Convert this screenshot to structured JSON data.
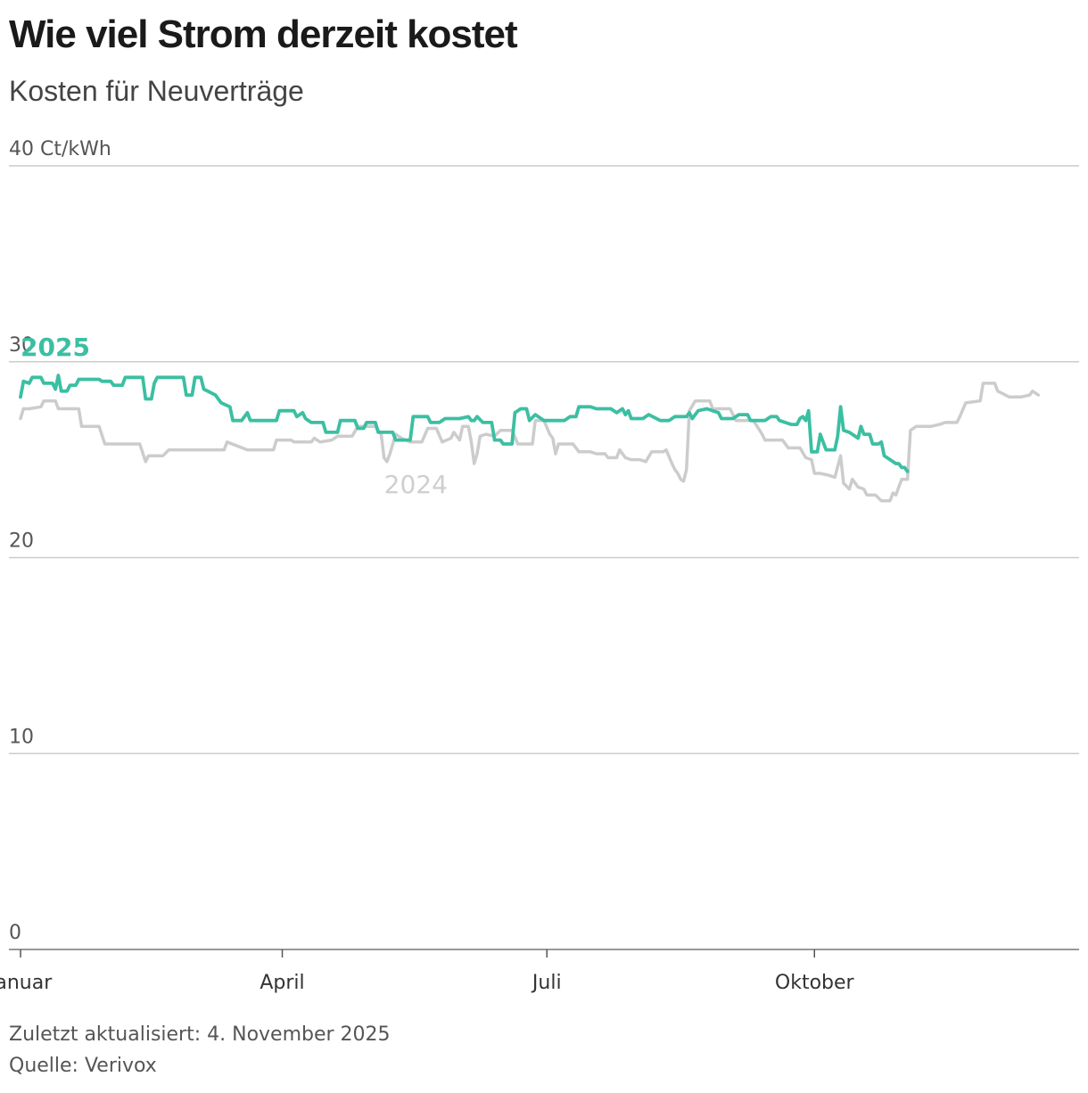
{
  "title": "Wie viel Strom derzeit kostet",
  "subtitle": "Kosten für Neuverträge",
  "footer": {
    "updated": "Zuletzt aktualisiert: 4. November 2025",
    "source": "Quelle: Verivox"
  },
  "colors": {
    "series_2025": "#3bbfa2",
    "series_2024": "#cccccc",
    "grid": "#cccccc"
  },
  "chart_data": {
    "type": "line",
    "title": "Wie viel Strom derzeit kostet",
    "subtitle": "Kosten für Neuverträge",
    "ylabel": "Ct/kWh",
    "ylim": [
      0,
      40
    ],
    "yticks": [
      {
        "value": 0,
        "label": "0"
      },
      {
        "value": 10,
        "label": "10"
      },
      {
        "value": 20,
        "label": "20"
      },
      {
        "value": 30,
        "label": "30"
      },
      {
        "value": 40,
        "label": "40 Ct/kWh"
      }
    ],
    "xlim_days": [
      -4,
      364
    ],
    "xticks": [
      {
        "day": 0,
        "label": "Januar"
      },
      {
        "day": 90,
        "label": "April"
      },
      {
        "day": 181,
        "label": "Juli"
      },
      {
        "day": 273,
        "label": "Oktober"
      }
    ],
    "grid": true,
    "series": [
      {
        "name": "2024",
        "label_position": [
          125,
          23.3
        ],
        "points": [
          [
            0,
            27.1
          ],
          [
            1,
            27.6
          ],
          [
            3,
            27.6
          ],
          [
            7,
            27.7
          ],
          [
            8,
            28.0
          ],
          [
            12,
            28.0
          ],
          [
            13,
            27.6
          ],
          [
            20,
            27.6
          ],
          [
            21,
            26.7
          ],
          [
            27,
            26.7
          ],
          [
            29,
            25.8
          ],
          [
            41,
            25.8
          ],
          [
            43,
            24.9
          ],
          [
            44,
            25.2
          ],
          [
            49,
            25.2
          ],
          [
            51,
            25.5
          ],
          [
            70,
            25.5
          ],
          [
            71,
            25.9
          ],
          [
            78,
            25.5
          ],
          [
            87,
            25.5
          ],
          [
            88,
            26.0
          ],
          [
            93,
            26.0
          ],
          [
            94,
            25.9
          ],
          [
            100,
            25.9
          ],
          [
            101,
            26.1
          ],
          [
            103,
            25.9
          ],
          [
            107,
            26.0
          ],
          [
            109,
            26.2
          ],
          [
            114,
            26.2
          ],
          [
            116,
            26.7
          ],
          [
            122,
            26.7
          ],
          [
            124,
            26.3
          ],
          [
            125,
            25.1
          ],
          [
            126,
            24.9
          ],
          [
            127,
            25.3
          ],
          [
            129,
            26.3
          ],
          [
            131,
            26.1
          ],
          [
            134,
            25.9
          ],
          [
            138,
            25.9
          ],
          [
            140,
            26.6
          ],
          [
            143,
            26.6
          ],
          [
            145,
            25.9
          ],
          [
            148,
            26.1
          ],
          [
            149,
            26.4
          ],
          [
            151,
            26.0
          ],
          [
            152,
            26.7
          ],
          [
            154,
            26.7
          ],
          [
            155,
            25.9
          ],
          [
            156,
            24.8
          ],
          [
            157,
            25.3
          ],
          [
            158,
            26.2
          ],
          [
            160,
            26.3
          ],
          [
            163,
            26.2
          ],
          [
            165,
            26.5
          ],
          [
            169,
            26.5
          ],
          [
            171,
            25.8
          ],
          [
            176,
            25.8
          ],
          [
            177,
            27.0
          ],
          [
            180,
            27.0
          ],
          [
            182,
            26.3
          ],
          [
            183,
            26.1
          ],
          [
            184,
            25.3
          ],
          [
            185,
            25.8
          ],
          [
            190,
            25.8
          ],
          [
            192,
            25.4
          ],
          [
            196,
            25.4
          ],
          [
            198,
            25.3
          ],
          [
            201,
            25.3
          ],
          [
            202,
            25.1
          ],
          [
            205,
            25.1
          ],
          [
            206,
            25.5
          ],
          [
            208,
            25.1
          ],
          [
            210,
            25.0
          ],
          [
            213,
            25.0
          ],
          [
            215,
            24.9
          ],
          [
            217,
            25.4
          ],
          [
            221,
            25.4
          ],
          [
            222,
            25.5
          ],
          [
            224,
            24.8
          ],
          [
            225,
            24.5
          ],
          [
            226,
            24.3
          ],
          [
            227,
            24.0
          ],
          [
            228,
            23.9
          ],
          [
            229,
            24.5
          ],
          [
            230,
            27.5
          ],
          [
            232,
            28.0
          ],
          [
            237,
            28.0
          ],
          [
            238,
            27.6
          ],
          [
            244,
            27.6
          ],
          [
            246,
            27.0
          ],
          [
            252,
            27.0
          ],
          [
            255,
            26.3
          ],
          [
            256,
            26.0
          ],
          [
            262,
            26.0
          ],
          [
            264,
            25.6
          ],
          [
            268,
            25.6
          ],
          [
            270,
            25.1
          ],
          [
            272,
            25.0
          ],
          [
            273,
            24.3
          ],
          [
            275,
            24.3
          ],
          [
            278,
            24.2
          ],
          [
            280,
            24.1
          ],
          [
            282,
            25.2
          ],
          [
            283,
            23.8
          ],
          [
            285,
            23.5
          ],
          [
            286,
            24.0
          ],
          [
            288,
            23.6
          ],
          [
            290,
            23.5
          ],
          [
            291,
            23.2
          ],
          [
            294,
            23.2
          ],
          [
            296,
            22.9
          ],
          [
            299,
            22.9
          ],
          [
            300,
            23.3
          ],
          [
            301,
            23.2
          ],
          [
            302,
            23.6
          ],
          [
            303,
            24.0
          ],
          [
            305,
            24.0
          ],
          [
            306,
            26.5
          ],
          [
            308,
            26.7
          ],
          [
            312,
            26.7
          ],
          [
            313,
            26.7
          ],
          [
            316,
            26.8
          ],
          [
            318,
            26.9
          ],
          [
            322,
            26.9
          ],
          [
            323,
            27.2
          ],
          [
            325,
            27.9
          ],
          [
            330,
            28.0
          ],
          [
            331,
            28.9
          ],
          [
            335,
            28.9
          ],
          [
            336,
            28.5
          ],
          [
            340,
            28.2
          ],
          [
            344,
            28.2
          ],
          [
            347,
            28.3
          ],
          [
            348,
            28.5
          ],
          [
            350,
            28.3
          ]
        ]
      },
      {
        "name": "2025",
        "label_position": [
          0,
          30.3
        ],
        "points": [
          [
            0,
            28.2
          ],
          [
            1,
            29.0
          ],
          [
            3,
            28.9
          ],
          [
            4,
            29.2
          ],
          [
            7,
            29.2
          ],
          [
            8,
            28.9
          ],
          [
            11,
            28.9
          ],
          [
            12,
            28.6
          ],
          [
            13,
            29.3
          ],
          [
            14,
            28.5
          ],
          [
            16,
            28.5
          ],
          [
            17,
            28.8
          ],
          [
            19,
            28.8
          ],
          [
            20,
            29.1
          ],
          [
            27,
            29.1
          ],
          [
            28,
            29.0
          ],
          [
            31,
            29.0
          ],
          [
            32,
            28.8
          ],
          [
            35,
            28.8
          ],
          [
            36,
            29.2
          ],
          [
            42,
            29.2
          ],
          [
            43,
            28.1
          ],
          [
            45,
            28.1
          ],
          [
            46,
            28.9
          ],
          [
            47,
            29.2
          ],
          [
            56,
            29.2
          ],
          [
            57,
            28.3
          ],
          [
            59,
            28.3
          ],
          [
            60,
            29.2
          ],
          [
            62,
            29.2
          ],
          [
            63,
            28.6
          ],
          [
            67,
            28.3
          ],
          [
            69,
            27.9
          ],
          [
            72,
            27.7
          ],
          [
            73,
            27.0
          ],
          [
            76,
            27.0
          ],
          [
            78,
            27.4
          ],
          [
            79,
            27.0
          ],
          [
            88,
            27.0
          ],
          [
            89,
            27.5
          ],
          [
            94,
            27.5
          ],
          [
            95,
            27.2
          ],
          [
            97,
            27.4
          ],
          [
            98,
            27.1
          ],
          [
            100,
            26.9
          ],
          [
            104,
            26.9
          ],
          [
            105,
            26.4
          ],
          [
            109,
            26.4
          ],
          [
            110,
            27.0
          ],
          [
            115,
            27.0
          ],
          [
            116,
            26.6
          ],
          [
            118,
            26.6
          ],
          [
            119,
            26.9
          ],
          [
            122,
            26.9
          ],
          [
            123,
            26.4
          ],
          [
            128,
            26.4
          ],
          [
            129,
            26.0
          ],
          [
            134,
            26.0
          ],
          [
            135,
            27.2
          ],
          [
            140,
            27.2
          ],
          [
            141,
            26.9
          ],
          [
            144,
            26.9
          ],
          [
            146,
            27.1
          ],
          [
            151,
            27.1
          ],
          [
            154,
            27.2
          ],
          [
            155,
            27.0
          ],
          [
            156,
            27.0
          ],
          [
            157,
            27.2
          ],
          [
            159,
            26.9
          ],
          [
            162,
            26.9
          ],
          [
            163,
            26.0
          ],
          [
            165,
            26.0
          ],
          [
            166,
            25.8
          ],
          [
            169,
            25.8
          ],
          [
            170,
            27.4
          ],
          [
            172,
            27.6
          ],
          [
            174,
            27.6
          ],
          [
            175,
            27.0
          ],
          [
            177,
            27.3
          ],
          [
            180,
            27.0
          ],
          [
            187,
            27.0
          ],
          [
            189,
            27.2
          ],
          [
            191,
            27.2
          ],
          [
            192,
            27.7
          ],
          [
            196,
            27.7
          ],
          [
            198,
            27.6
          ],
          [
            203,
            27.6
          ],
          [
            205,
            27.4
          ],
          [
            207,
            27.6
          ],
          [
            208,
            27.3
          ],
          [
            209,
            27.5
          ],
          [
            210,
            27.1
          ],
          [
            214,
            27.1
          ],
          [
            216,
            27.3
          ],
          [
            220,
            27.0
          ],
          [
            223,
            27.0
          ],
          [
            225,
            27.2
          ],
          [
            229,
            27.2
          ],
          [
            230,
            27.4
          ],
          [
            231,
            27.1
          ],
          [
            233,
            27.5
          ],
          [
            236,
            27.6
          ],
          [
            240,
            27.4
          ],
          [
            241,
            27.1
          ],
          [
            245,
            27.1
          ],
          [
            247,
            27.3
          ],
          [
            250,
            27.3
          ],
          [
            251,
            27.0
          ],
          [
            256,
            27.0
          ],
          [
            258,
            27.2
          ],
          [
            260,
            27.2
          ],
          [
            261,
            27.0
          ],
          [
            263,
            26.9
          ],
          [
            265,
            26.8
          ],
          [
            267,
            26.8
          ],
          [
            268,
            27.1
          ],
          [
            269,
            27.2
          ],
          [
            270,
            27.0
          ],
          [
            271,
            27.5
          ],
          [
            272,
            25.4
          ],
          [
            273,
            25.4
          ],
          [
            274,
            25.4
          ],
          [
            275,
            26.3
          ],
          [
            276,
            25.9
          ],
          [
            277,
            25.5
          ],
          [
            280,
            25.5
          ],
          [
            281,
            26.2
          ],
          [
            282,
            27.7
          ],
          [
            283,
            26.5
          ],
          [
            285,
            26.4
          ],
          [
            287,
            26.2
          ],
          [
            288,
            26.1
          ],
          [
            289,
            26.7
          ],
          [
            290,
            26.3
          ],
          [
            292,
            26.3
          ],
          [
            293,
            25.8
          ],
          [
            295,
            25.8
          ],
          [
            296,
            25.9
          ],
          [
            297,
            25.2
          ],
          [
            299,
            25.0
          ],
          [
            301,
            24.8
          ],
          [
            302,
            24.8
          ],
          [
            303,
            24.6
          ],
          [
            304,
            24.6
          ],
          [
            305,
            24.4
          ]
        ]
      }
    ]
  }
}
